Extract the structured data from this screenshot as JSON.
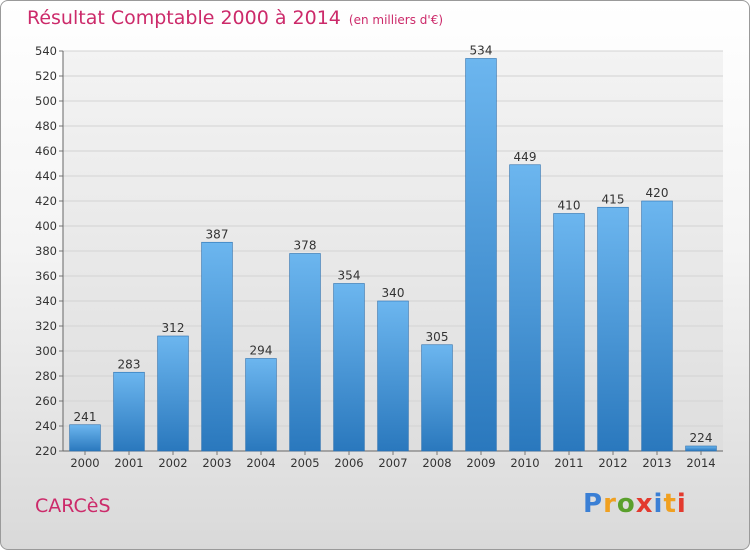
{
  "header": {
    "title": "Résultat Comptable 2000 à 2014",
    "subtitle": "(en milliers d'€)"
  },
  "footer": {
    "commune": "CARCèS",
    "brand": "Proxiti",
    "brand_colors": [
      "#3a7fd5",
      "#f0a020",
      "#5aa02c",
      "#e33a2e",
      "#3a7fd5",
      "#f0a020",
      "#e33a2e"
    ]
  },
  "colors": {
    "bar": "#3d92d8",
    "bar_light": "#6cb6ef",
    "bar_dark": "#2a78bd",
    "title": "#cc2a6a",
    "grid": "#d3d3d3",
    "text": "#333333"
  },
  "chart_data": {
    "type": "bar",
    "categories": [
      "2000",
      "2001",
      "2002",
      "2003",
      "2004",
      "2005",
      "2006",
      "2007",
      "2008",
      "2009",
      "2010",
      "2011",
      "2012",
      "2013",
      "2014"
    ],
    "values": [
      241,
      283,
      312,
      387,
      294,
      378,
      354,
      340,
      305,
      534,
      449,
      410,
      415,
      420,
      224
    ],
    "ylim": [
      220,
      540
    ],
    "yticks": [
      220,
      240,
      260,
      280,
      300,
      320,
      340,
      360,
      380,
      400,
      420,
      440,
      460,
      480,
      500,
      520,
      540
    ],
    "grid": true,
    "data_labels": true
  }
}
